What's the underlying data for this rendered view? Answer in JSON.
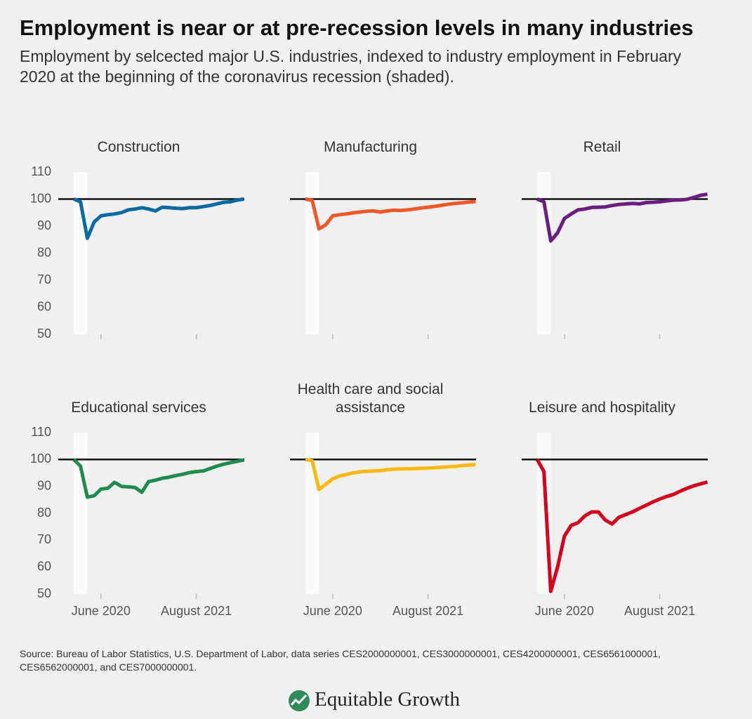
{
  "header": {
    "title": "Employment is near or at pre-recession levels in many industries",
    "subtitle": "Employment by selcected major U.S. industries, indexed to industry employment in February 2020 at the beginning of the coronavirus recession (shaded)."
  },
  "chart_data": [
    {
      "type": "line",
      "title": "Construction",
      "color": "#0b6aa2",
      "ylim": [
        50,
        110
      ],
      "yticks": [
        50,
        60,
        70,
        80,
        90,
        100,
        110
      ],
      "reference_line": 100,
      "shaded_range": [
        0,
        2
      ],
      "values": [
        100,
        99,
        85.5,
        91.5,
        93.8,
        94.2,
        94.5,
        95,
        96,
        96.3,
        96.8,
        96.3,
        95.6,
        97,
        96.8,
        96.6,
        96.5,
        96.8,
        96.8,
        97.2,
        97.6,
        98.2,
        98.8,
        99,
        99.6,
        100
      ]
    },
    {
      "type": "line",
      "title": "Manufacturing",
      "color": "#f2572a",
      "ylim": [
        50,
        110
      ],
      "reference_line": 100,
      "shaded_range": [
        0,
        2
      ],
      "values": [
        100,
        99.5,
        89,
        90.5,
        93.8,
        94.2,
        94.5,
        94.9,
        95.2,
        95.5,
        95.6,
        95.2,
        95.6,
        95.9,
        95.8,
        96,
        96.3,
        96.7,
        97,
        97.3,
        97.7,
        98.1,
        98.4,
        98.6,
        98.9,
        99.1
      ]
    },
    {
      "type": "line",
      "title": "Retail",
      "color": "#6b1d80",
      "ylim": [
        50,
        110
      ],
      "reference_line": 100,
      "shaded_range": [
        0,
        2
      ],
      "values": [
        100,
        99,
        84.5,
        87.5,
        92.8,
        94.5,
        96,
        96.3,
        96.9,
        97,
        97.1,
        97.6,
        98,
        98.2,
        98.4,
        98.2,
        98.7,
        98.8,
        99,
        99.3,
        99.6,
        99.7,
        99.9,
        100.6,
        101.4,
        101.8
      ]
    },
    {
      "type": "line",
      "title": "Educational services",
      "color": "#1f8b4f",
      "ylim": [
        50,
        110
      ],
      "yticks": [
        50,
        60,
        70,
        80,
        90,
        100,
        110
      ],
      "reference_line": 100,
      "shaded_range": [
        0,
        2
      ],
      "categories": [
        null,
        null,
        null,
        null,
        "June 2020",
        null,
        null,
        null,
        null,
        null,
        null,
        null,
        null,
        null,
        null,
        null,
        null,
        null,
        "August 2021",
        null,
        null,
        null,
        null,
        null,
        null,
        null
      ],
      "values": [
        100,
        97.5,
        86,
        86.5,
        89,
        89.3,
        91.5,
        90,
        89.8,
        89.6,
        87.8,
        91.8,
        92.3,
        93,
        93.4,
        94,
        94.5,
        95.1,
        95.5,
        95.7,
        96.6,
        97.5,
        98.2,
        98.8,
        99.3,
        99.8
      ]
    },
    {
      "type": "line",
      "title": "Health care and social assistance",
      "color": "#fbb813",
      "ylim": [
        50,
        110
      ],
      "reference_line": 100,
      "shaded_range": [
        0,
        2
      ],
      "categories": [
        null,
        null,
        null,
        null,
        "June 2020",
        null,
        null,
        null,
        null,
        null,
        null,
        null,
        null,
        null,
        null,
        null,
        null,
        null,
        "August 2021",
        null,
        null,
        null,
        null,
        null,
        null,
        null
      ],
      "values": [
        100,
        99.5,
        88.8,
        90.8,
        92.8,
        93.8,
        94.4,
        95,
        95.4,
        95.6,
        95.7,
        95.8,
        96.2,
        96.4,
        96.5,
        96.5,
        96.6,
        96.7,
        96.8,
        96.9,
        97.1,
        97.3,
        97.4,
        97.7,
        97.9,
        98.1
      ]
    },
    {
      "type": "line",
      "title": "Leisure and hospitality",
      "color": "#d5001c",
      "ylim": [
        50,
        110
      ],
      "reference_line": 100,
      "shaded_range": [
        0,
        2
      ],
      "categories": [
        null,
        null,
        null,
        null,
        "June 2020",
        null,
        null,
        null,
        null,
        null,
        null,
        null,
        null,
        null,
        null,
        null,
        null,
        null,
        "August 2021",
        null,
        null,
        null,
        null,
        null,
        null,
        null
      ],
      "values": [
        100,
        95.5,
        51,
        60,
        71.5,
        75.5,
        76.5,
        79,
        80.5,
        80.5,
        77.5,
        76,
        78.5,
        79.5,
        80.5,
        81.8,
        83,
        84.2,
        85.3,
        86.2,
        87,
        88.2,
        89.3,
        90.2,
        90.9,
        91.6
      ]
    }
  ],
  "footer": {
    "source": "Source: Bureau of Labor Statistics, U.S. Department of Labor, data series CES2000000001, CES3000000001, CES4200000001, CES6561000001, CES6562000001, and CES7000000001.",
    "logo": "Equitable Growth"
  }
}
